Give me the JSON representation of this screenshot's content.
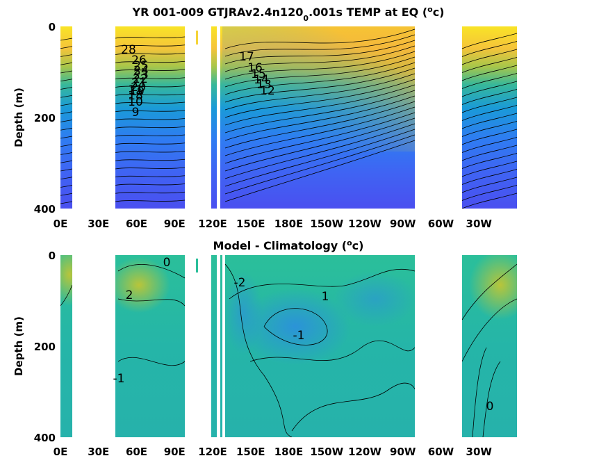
{
  "chart_data": [
    {
      "type": "heatmap",
      "title_main": "YR 001-009 GTJRAv2.4n120",
      "title_sub": "0",
      "title_rest": ".001s TEMP at EQ (",
      "title_sup": "o",
      "title_end": "c)",
      "ylabel": "Depth (m)",
      "xlabel": "",
      "x_ticks": [
        "0E",
        "30E",
        "60E",
        "90E",
        "120E",
        "150E",
        "180E",
        "150W",
        "120W",
        "90W",
        "60W",
        "30W"
      ],
      "y_ticks": [
        "0",
        "200",
        "400"
      ],
      "ylim": [
        0,
        400
      ],
      "colormap": "parula",
      "contour_labels": [
        "28",
        "26",
        "25",
        "24",
        "23",
        "22",
        "21",
        "20",
        "19",
        "18",
        "17",
        "16",
        "15",
        "14",
        "13",
        "12",
        "11",
        "10",
        "9"
      ],
      "contour_levels": [
        9,
        10,
        11,
        12,
        13,
        14,
        15,
        16,
        17,
        18,
        19,
        20,
        21,
        22,
        23,
        24,
        25,
        26,
        27,
        28,
        29
      ]
    },
    {
      "type": "heatmap",
      "title_main": "Model - Climatology (",
      "title_sup": "o",
      "title_end": "c)",
      "ylabel": "Depth (m)",
      "xlabel": "",
      "x_ticks": [
        "0E",
        "30E",
        "60E",
        "90E",
        "120E",
        "150E",
        "180E",
        "150W",
        "120W",
        "90W",
        "60W",
        "30W"
      ],
      "y_ticks": [
        "0",
        "200",
        "400"
      ],
      "ylim": [
        0,
        400
      ],
      "colormap": "parula",
      "contour_labels": [
        "0",
        "2",
        "-1",
        "-2",
        "1",
        "-1",
        "0"
      ],
      "contour_levels": [
        -2,
        -1,
        0,
        1,
        2
      ]
    }
  ],
  "colors": {
    "warm": "#f9e426",
    "mid": "#22b4a6",
    "cool": "#4a53ef",
    "land": "#ffffff"
  }
}
